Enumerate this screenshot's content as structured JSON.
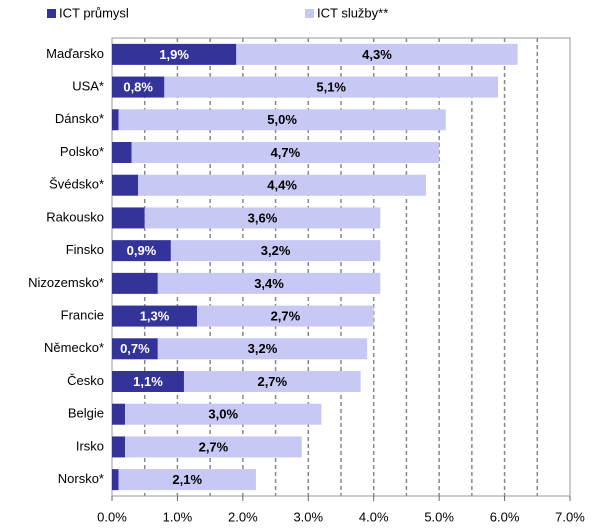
{
  "chart_data": {
    "type": "stacked_barh",
    "categories": [
      "Maďarsko",
      "USA*",
      "Dánsko*",
      "Polsko*",
      "Švédsko*",
      "Rakousko",
      "Finsko",
      "Nizozemsko*",
      "Francie",
      "Německo*",
      "Česko",
      "Belgie",
      "Irsko",
      "Norsko*"
    ],
    "series": [
      {
        "name": "ICT průmysl",
        "color": "#333399",
        "values": [
          1.9,
          0.8,
          0.1,
          0.3,
          0.4,
          0.5,
          0.9,
          0.7,
          1.3,
          0.7,
          1.1,
          0.2,
          0.2,
          0.1
        ],
        "value_labels": [
          "1,9%",
          "0,8%",
          null,
          null,
          null,
          null,
          "0,9%",
          null,
          "1,3%",
          "0,7%",
          "1,1%",
          null,
          null,
          null
        ]
      },
      {
        "name": "ICT služby**",
        "color": "#c8c8f4",
        "values": [
          4.3,
          5.1,
          5.0,
          4.7,
          4.4,
          3.6,
          3.2,
          3.4,
          2.7,
          3.2,
          2.7,
          3.0,
          2.7,
          2.1
        ],
        "value_labels": [
          "4,3%",
          "5,1%",
          "5,0%",
          "4,7%",
          "4,4%",
          "3,6%",
          "3,2%",
          "3,4%",
          "2,7%",
          "3,2%",
          "2,7%",
          "3,0%",
          "2,7%",
          "2,1%"
        ]
      }
    ],
    "xlim": [
      0,
      7
    ],
    "xticks": [
      {
        "value": 0,
        "label": "0.0%"
      },
      {
        "value": 1,
        "label": "1.0%"
      },
      {
        "value": 2,
        "label": "2.0%"
      },
      {
        "value": 3,
        "label": "3.0%"
      },
      {
        "value": 4,
        "label": "4.0%"
      },
      {
        "value": 5,
        "label": "5.0%"
      },
      {
        "value": 6,
        "label": "6.0%"
      },
      {
        "value": 7,
        "label": "7.0%"
      }
    ],
    "xgrid": [
      0.5,
      1,
      1.5,
      2,
      2.5,
      3,
      3.5,
      4,
      4.5,
      5,
      5.5,
      6,
      6.5
    ],
    "legend": "top"
  }
}
